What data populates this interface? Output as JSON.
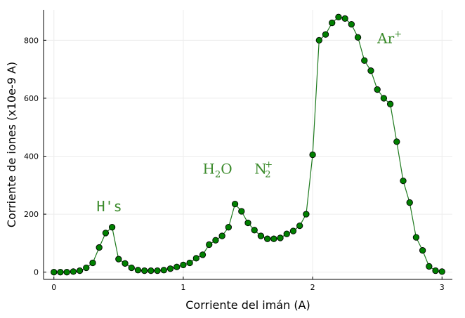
{
  "chart_data": {
    "type": "line",
    "xlabel": "Corriente del imán (A)",
    "ylabel": "Corriente de iones (x10e-9 A)",
    "xlim": [
      -0.08,
      3.08
    ],
    "ylim": [
      -25,
      905
    ],
    "xticks": [
      0,
      1,
      2,
      3
    ],
    "yticks": [
      0,
      200,
      400,
      600,
      800
    ],
    "grid": true,
    "legend": "none",
    "colors": {
      "line": "#1e7a1e",
      "marker": "#008000",
      "marker_edge": "#000000",
      "annotation": "#3a8a2a"
    },
    "series": [
      {
        "x": [
          0.0,
          0.05,
          0.1,
          0.15,
          0.2,
          0.25,
          0.3,
          0.35,
          0.4,
          0.45,
          0.5,
          0.55,
          0.6,
          0.65,
          0.7,
          0.75,
          0.8,
          0.85,
          0.9,
          0.95,
          1.0,
          1.05,
          1.1,
          1.15,
          1.2,
          1.25,
          1.3,
          1.35,
          1.4,
          1.45,
          1.5,
          1.55,
          1.6,
          1.65,
          1.7,
          1.75,
          1.8,
          1.85,
          1.9,
          1.95,
          2.0,
          2.05,
          2.1,
          2.15,
          2.2,
          2.25,
          2.3,
          2.35,
          2.4,
          2.45,
          2.5,
          2.55,
          2.6,
          2.65,
          2.7,
          2.75,
          2.8,
          2.85,
          2.9,
          2.95,
          3.0
        ],
        "y": [
          0,
          0,
          0,
          2,
          5,
          15,
          32,
          85,
          135,
          155,
          45,
          30,
          15,
          7,
          5,
          5,
          5,
          7,
          12,
          18,
          25,
          32,
          48,
          60,
          95,
          110,
          125,
          155,
          235,
          210,
          170,
          145,
          125,
          115,
          115,
          118,
          132,
          142,
          160,
          200,
          405,
          800,
          820,
          860,
          880,
          875,
          855,
          810,
          730,
          695,
          630,
          600,
          580,
          450,
          315,
          240,
          120,
          75,
          20,
          5,
          2
        ]
      }
    ],
    "annotations": [
      {
        "text": "H's",
        "at": [
          0.33,
          210
        ]
      },
      {
        "text": "H",
        "sub": "2",
        "rest": "O",
        "at": [
          1.15,
          340
        ]
      },
      {
        "text": "N",
        "sub": "2",
        "sup": "+",
        "at": [
          1.55,
          340
        ]
      },
      {
        "text": "Ar",
        "sup": "+",
        "at": [
          2.5,
          790
        ]
      }
    ]
  }
}
